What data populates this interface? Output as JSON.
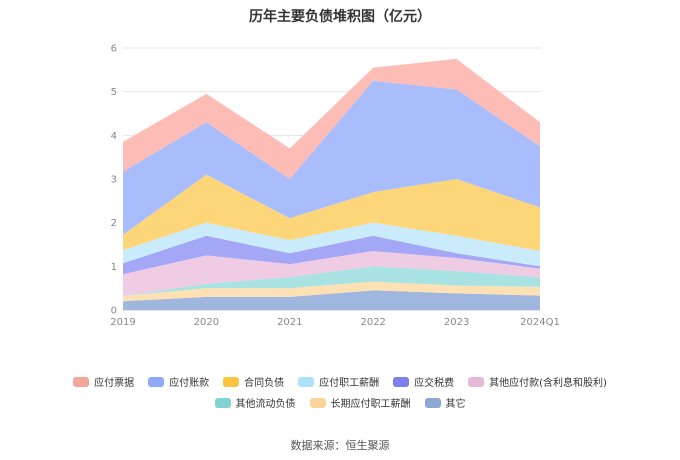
{
  "chart_data": {
    "type": "area",
    "stacked": true,
    "title": "历年主要负债堆积图（亿元）",
    "categories": [
      "2019",
      "2020",
      "2021",
      "2022",
      "2023",
      "2024Q1"
    ],
    "ylim": [
      0,
      6
    ],
    "yticks": [
      0,
      1,
      2,
      3,
      4,
      5,
      6
    ],
    "grid": true,
    "legend_position": "bottom",
    "series": [
      {
        "name": "其它",
        "color": "#9fb6de",
        "values": [
          0.2,
          0.3,
          0.3,
          0.45,
          0.38,
          0.33
        ]
      },
      {
        "name": "长期应付职工薪酬",
        "color": "#fde1b5",
        "values": [
          0.12,
          0.2,
          0.2,
          0.2,
          0.18,
          0.2
        ]
      },
      {
        "name": "其他流动负债",
        "color": "#a9e2e2",
        "values": [
          0.0,
          0.1,
          0.25,
          0.35,
          0.33,
          0.22
        ]
      },
      {
        "name": "其他应付款(含利息和股利)",
        "color": "#efcbe4",
        "values": [
          0.5,
          0.65,
          0.3,
          0.35,
          0.3,
          0.2
        ]
      },
      {
        "name": "应交税费",
        "color": "#a4a6f6",
        "values": [
          0.25,
          0.45,
          0.25,
          0.35,
          0.11,
          0.05
        ]
      },
      {
        "name": "应付职工薪酬",
        "color": "#c9ebfb",
        "values": [
          0.3,
          0.3,
          0.3,
          0.3,
          0.4,
          0.35
        ]
      },
      {
        "name": "合同负债",
        "color": "#fdd67a",
        "values": [
          0.35,
          1.1,
          0.5,
          0.7,
          1.3,
          1.0
        ]
      },
      {
        "name": "应付账款",
        "color": "#a9bdfd",
        "values": [
          1.45,
          1.2,
          0.9,
          2.55,
          2.05,
          1.4
        ]
      },
      {
        "name": "应付票据",
        "color": "#fdbcb6",
        "values": [
          0.68,
          0.65,
          0.7,
          0.3,
          0.7,
          0.55
        ]
      }
    ]
  },
  "legend": [
    {
      "label": "应付票据",
      "color": "#f5a49b"
    },
    {
      "label": "应付账款",
      "color": "#8fa8f7"
    },
    {
      "label": "合同负债",
      "color": "#fbc33f"
    },
    {
      "label": "应付职工薪酬",
      "color": "#ace2f8"
    },
    {
      "label": "应交税费",
      "color": "#7d7ff0"
    },
    {
      "label": "其他应付款(含利息和股利)",
      "color": "#e8b8d8"
    },
    {
      "label": "其他流动负债",
      "color": "#7fd3d3"
    },
    {
      "label": "长期应付职工薪酬",
      "color": "#fbd49a"
    },
    {
      "label": "其它",
      "color": "#8aa7d6"
    }
  ],
  "source_text": "数据来源：恒生聚源"
}
